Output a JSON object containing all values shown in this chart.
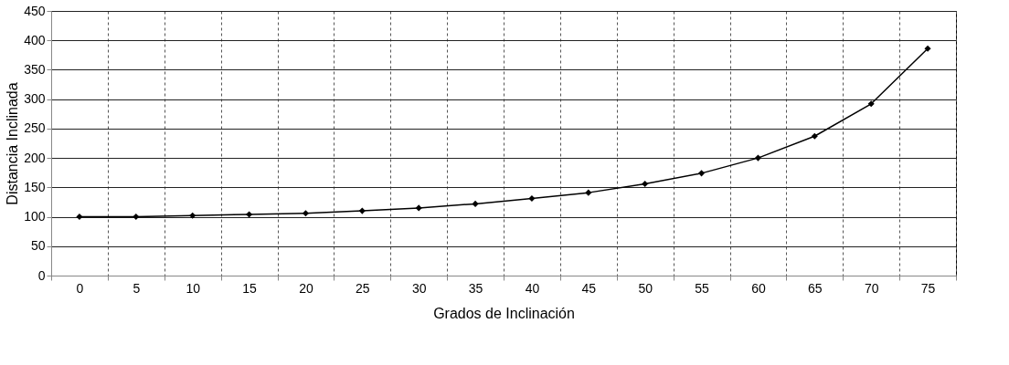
{
  "chart_data": {
    "type": "line",
    "xlabel": "Grados de Inclinación",
    "ylabel": "Distancia Inclinada",
    "categories": [
      "0",
      "5",
      "10",
      "15",
      "20",
      "25",
      "30",
      "35",
      "40",
      "45",
      "50",
      "55",
      "60",
      "65",
      "70",
      "75"
    ],
    "series": [
      {
        "color": "#000000",
        "values": [
          100,
          100,
          102,
          104,
          106,
          110,
          115,
          122,
          131,
          141,
          156,
          174,
          200,
          237,
          292,
          386
        ]
      }
    ],
    "ylim": [
      0,
      450
    ],
    "yticks": [
      0,
      50,
      100,
      150,
      200,
      250,
      300,
      350,
      400,
      450
    ],
    "grid": true,
    "marker": "diamond",
    "line_style": "solid"
  }
}
